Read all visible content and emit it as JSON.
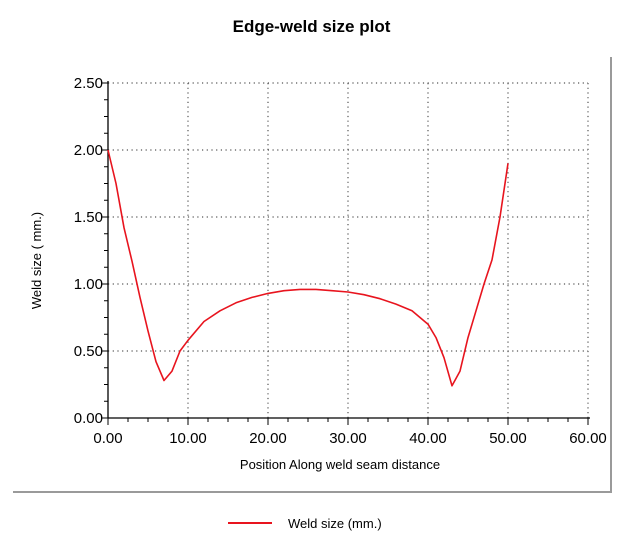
{
  "chart_data": {
    "type": "line",
    "title": "Edge-weld size plot",
    "xlabel": "Position Along weld seam distance",
    "ylabel": "Weld size ( mm.)",
    "xlim": [
      0,
      60
    ],
    "ylim": [
      0,
      2.5
    ],
    "xticks": [
      "0.00",
      "10.00",
      "20.00",
      "30.00",
      "40.00",
      "50.00",
      "60.00"
    ],
    "yticks": [
      "0.00",
      "0.50",
      "1.00",
      "1.50",
      "2.00",
      "2.50"
    ],
    "grid": true,
    "legend_position": "bottom",
    "series": [
      {
        "name": "Weld size (mm.)",
        "color": "#e8141e",
        "x": [
          0,
          1,
          2,
          3,
          4,
          5,
          6,
          7,
          8,
          9,
          10,
          12,
          14,
          16,
          18,
          20,
          22,
          24,
          26,
          28,
          30,
          32,
          34,
          36,
          38,
          40,
          41,
          42,
          43,
          44,
          45,
          46,
          47,
          48,
          49,
          50
        ],
        "y": [
          2.0,
          1.75,
          1.42,
          1.17,
          0.9,
          0.65,
          0.42,
          0.28,
          0.35,
          0.5,
          0.58,
          0.72,
          0.8,
          0.86,
          0.9,
          0.93,
          0.95,
          0.96,
          0.96,
          0.95,
          0.94,
          0.92,
          0.89,
          0.85,
          0.8,
          0.7,
          0.6,
          0.45,
          0.24,
          0.35,
          0.6,
          0.8,
          1.0,
          1.18,
          1.5,
          1.9
        ]
      }
    ]
  }
}
